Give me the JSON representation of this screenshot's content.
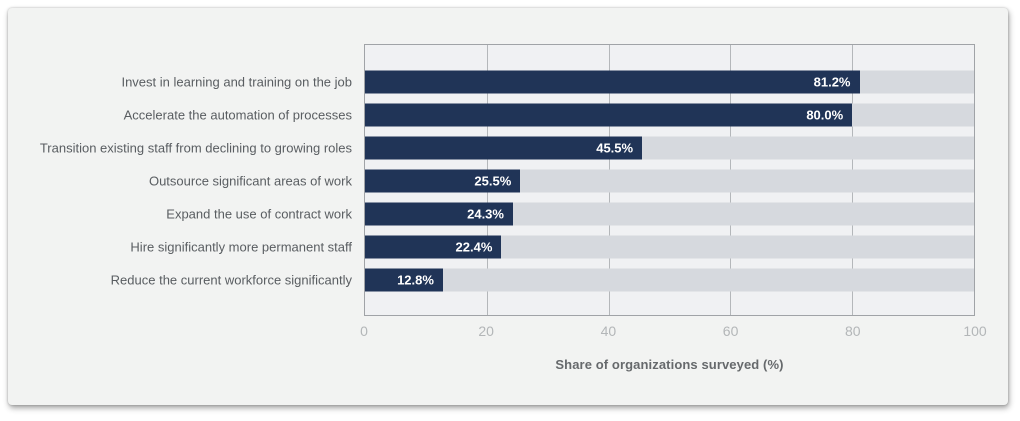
{
  "chart_data": {
    "type": "bar",
    "orientation": "horizontal",
    "categories": [
      "Invest in learning and training on the job",
      "Accelerate the automation of processes",
      "Transition existing staff from declining to growing roles",
      "Outsource significant areas of work",
      "Expand the use of contract work",
      "Hire significantly more permanent staff",
      "Reduce the current workforce significantly"
    ],
    "values": [
      81.2,
      80.0,
      45.5,
      25.5,
      24.3,
      22.4,
      12.8
    ],
    "value_labels": [
      "81.2%",
      "80.0%",
      "45.5%",
      "25.5%",
      "24.3%",
      "22.4%",
      "12.8%"
    ],
    "xlabel": "Share of organizations surveyed (%)",
    "xlim": [
      0,
      100
    ],
    "xticks": [
      0,
      20,
      40,
      60,
      80,
      100
    ],
    "grid": "vertical-inner",
    "legend": "none",
    "bar_value_label_position": "inside-right",
    "colors": {
      "bar": "#203457",
      "bar_track": "#d6d9de",
      "plot_background": "#f0f1f3",
      "card_background": "#f2f3f2",
      "gridline": "#b4b7ba",
      "plot_border": "#a0a3a7",
      "tick_label": "#b3b6b8",
      "axis_label": "#66696c",
      "category_label": "#595d61",
      "value_label": "#ffffff"
    }
  }
}
